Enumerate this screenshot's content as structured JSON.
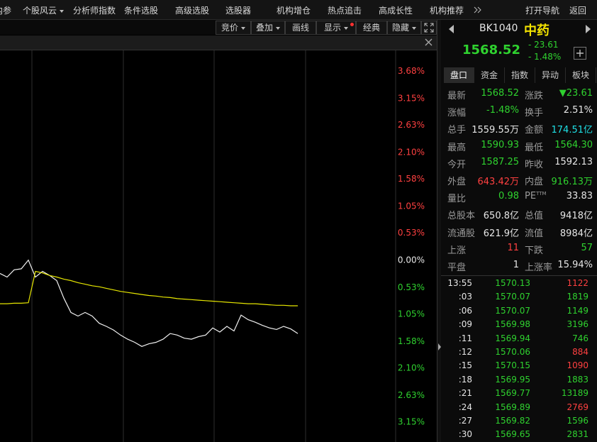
{
  "menu": {
    "items": [
      "内参",
      "个股风云",
      "分析师指数",
      "条件选股",
      "高级选股",
      "选股器",
      "机构增仓",
      "热点追击",
      "高成长性",
      "机构推荐"
    ],
    "right": [
      "打开导航",
      "返回"
    ]
  },
  "toolbar": [
    "竞价",
    "叠加",
    "画线",
    "显示",
    "经典",
    "隐藏"
  ],
  "chart": {
    "type": "line",
    "ylim": [
      -3.54,
      4.08
    ],
    "yticks": [
      {
        "value": 3.68,
        "label": "3.68%"
      },
      {
        "value": 3.15,
        "label": "3.15%"
      },
      {
        "value": 2.63,
        "label": "2.63%"
      },
      {
        "value": 2.1,
        "label": "2.10%"
      },
      {
        "value": 1.58,
        "label": "1.58%"
      },
      {
        "value": 1.05,
        "label": "1.05%"
      },
      {
        "value": 0.53,
        "label": "0.53%"
      },
      {
        "value": 0,
        "label": "0.00%"
      },
      {
        "value": -0.53,
        "label": "0.53%"
      },
      {
        "value": -1.05,
        "label": "1.05%"
      },
      {
        "value": -1.58,
        "label": "1.58%"
      },
      {
        "value": -2.1,
        "label": "2.10%"
      },
      {
        "value": -2.63,
        "label": "2.63%"
      },
      {
        "value": -3.15,
        "label": "3.15%"
      }
    ],
    "series": [
      {
        "color": "#f0f0f0",
        "values": [
          -0.26,
          -0.33,
          -0.19,
          -0.17,
          0.0,
          -0.33,
          -0.22,
          -0.3,
          -0.4,
          -0.74,
          -1.02,
          -1.09,
          -1.02,
          -1.09,
          -1.23,
          -1.29,
          -1.36,
          -1.46,
          -1.54,
          -1.6,
          -1.68,
          -1.63,
          -1.6,
          -1.54,
          -1.43,
          -1.46,
          -1.52,
          -1.54,
          -1.49,
          -1.46,
          -1.32,
          -1.4,
          -1.29,
          -1.38,
          -1.07,
          -1.16,
          -1.21,
          -1.27,
          -1.32,
          -1.35,
          -1.29,
          -1.34,
          -1.43
        ]
      },
      {
        "color": "#e6e600",
        "values": [
          -0.85,
          -0.85,
          -0.84,
          -0.84,
          -0.83,
          -0.22,
          -0.25,
          -0.3,
          -0.33,
          -0.37,
          -0.4,
          -0.44,
          -0.47,
          -0.5,
          -0.52,
          -0.55,
          -0.58,
          -0.61,
          -0.63,
          -0.65,
          -0.67,
          -0.69,
          -0.7,
          -0.72,
          -0.73,
          -0.75,
          -0.76,
          -0.77,
          -0.78,
          -0.79,
          -0.8,
          -0.81,
          -0.82,
          -0.83,
          -0.84,
          -0.85,
          -0.85,
          -0.86,
          -0.87,
          -0.88,
          -0.88,
          -0.89,
          -0.89
        ]
      }
    ]
  },
  "quote": {
    "code": "BK1040",
    "name": "中药",
    "price": "1568.52",
    "change": "- 23.61",
    "pct": "- 1.48%"
  },
  "tabs": [
    "盘口",
    "资金",
    "指数",
    "异动",
    "板块"
  ],
  "stats": [
    [
      {
        "label": "最新",
        "value": "1568.52",
        "color": "green"
      },
      {
        "label": "涨跌",
        "value": "▼23.61",
        "color": "green"
      }
    ],
    [
      {
        "label": "涨幅",
        "value": "-1.48%",
        "color": "green"
      },
      {
        "label": "换手",
        "value": "2.51%",
        "color": "white"
      }
    ],
    [
      {
        "label": "总手",
        "value": "1559.55万",
        "color": "white"
      },
      {
        "label": "金额",
        "value": "174.51亿",
        "color": "cyan"
      }
    ],
    [
      {
        "label": "最高",
        "value": "1590.93",
        "color": "green"
      },
      {
        "label": "最低",
        "value": "1564.30",
        "color": "green"
      }
    ],
    [
      {
        "label": "今开",
        "value": "1587.25",
        "color": "green"
      },
      {
        "label": "昨收",
        "value": "1592.13",
        "color": "white"
      }
    ],
    [
      {
        "label": "外盘",
        "value": "643.42万",
        "color": "red"
      },
      {
        "label": "内盘",
        "value": "916.13万",
        "color": "green"
      }
    ],
    [
      {
        "label": "量比",
        "value": "0.98",
        "color": "green"
      },
      {
        "label": "PE",
        "sup": "TTM",
        "value": "33.83",
        "color": "white"
      }
    ],
    [
      {
        "label": "总股本",
        "value": "650.8亿",
        "color": "white"
      },
      {
        "label": "总值",
        "value": "9418亿",
        "color": "white"
      }
    ],
    [
      {
        "label": "流通股",
        "value": "621.9亿",
        "color": "white"
      },
      {
        "label": "流值",
        "value": "8984亿",
        "color": "white"
      }
    ],
    [
      {
        "label": "上涨",
        "value": "11",
        "color": "red"
      },
      {
        "label": "下跌",
        "value": "57",
        "color": "green"
      }
    ],
    [
      {
        "label": "平盘",
        "value": "1",
        "color": "white"
      },
      {
        "label": "上涨率",
        "value": "15.94%",
        "color": "white"
      }
    ]
  ],
  "ticks": [
    {
      "time": "13:55",
      "price": "1570.13",
      "volume": "1122",
      "color": "red"
    },
    {
      "time": ":03",
      "price": "1570.07",
      "volume": "1819",
      "color": "green"
    },
    {
      "time": ":06",
      "price": "1570.07",
      "volume": "1149",
      "color": "green"
    },
    {
      "time": ":09",
      "price": "1569.98",
      "volume": "3196",
      "color": "green"
    },
    {
      "time": ":11",
      "price": "1569.94",
      "volume": "746",
      "color": "green"
    },
    {
      "time": ":12",
      "price": "1570.06",
      "volume": "884",
      "color": "red"
    },
    {
      "time": ":15",
      "price": "1570.15",
      "volume": "1090",
      "color": "red"
    },
    {
      "time": ":18",
      "price": "1569.95",
      "volume": "1883",
      "color": "green"
    },
    {
      "time": ":21",
      "price": "1569.77",
      "volume": "13189",
      "color": "green"
    },
    {
      "time": ":24",
      "price": "1569.89",
      "volume": "2769",
      "color": "red"
    },
    {
      "time": ":27",
      "price": "1569.82",
      "volume": "1596",
      "color": "green"
    },
    {
      "time": ":30",
      "price": "1569.65",
      "volume": "2831",
      "color": "green"
    }
  ]
}
